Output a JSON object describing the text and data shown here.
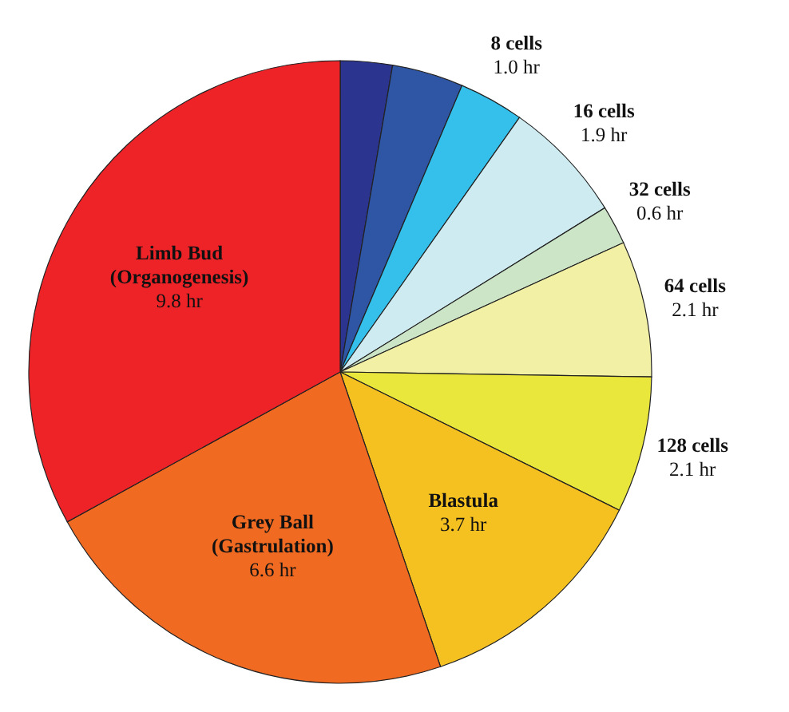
{
  "chart_data": {
    "type": "pie",
    "categories": [
      null,
      null,
      "8 cells",
      "16 cells",
      "32 cells",
      "64 cells",
      "128 cells",
      "Blastula",
      "Grey Ball\n(Gastrulation)",
      "Limb Bud\n(Organogenesis)"
    ],
    "values": [
      0.8,
      1.1,
      1.0,
      1.9,
      0.6,
      2.1,
      2.1,
      3.7,
      6.6,
      9.8
    ],
    "value_labels": [
      null,
      null,
      "1.0 hr",
      "1.9 hr",
      "0.6 hr",
      "2.1 hr",
      "2.1 hr",
      "3.7 hr",
      "6.6 hr",
      "9.8 hr"
    ],
    "colors": [
      "#2b3590",
      "#2f55a5",
      "#35c0ec",
      "#cdebf0",
      "#cce5c7",
      "#f2f0a5",
      "#e9e63c",
      "#f5c121",
      "#f06a22",
      "#ee2327"
    ]
  }
}
